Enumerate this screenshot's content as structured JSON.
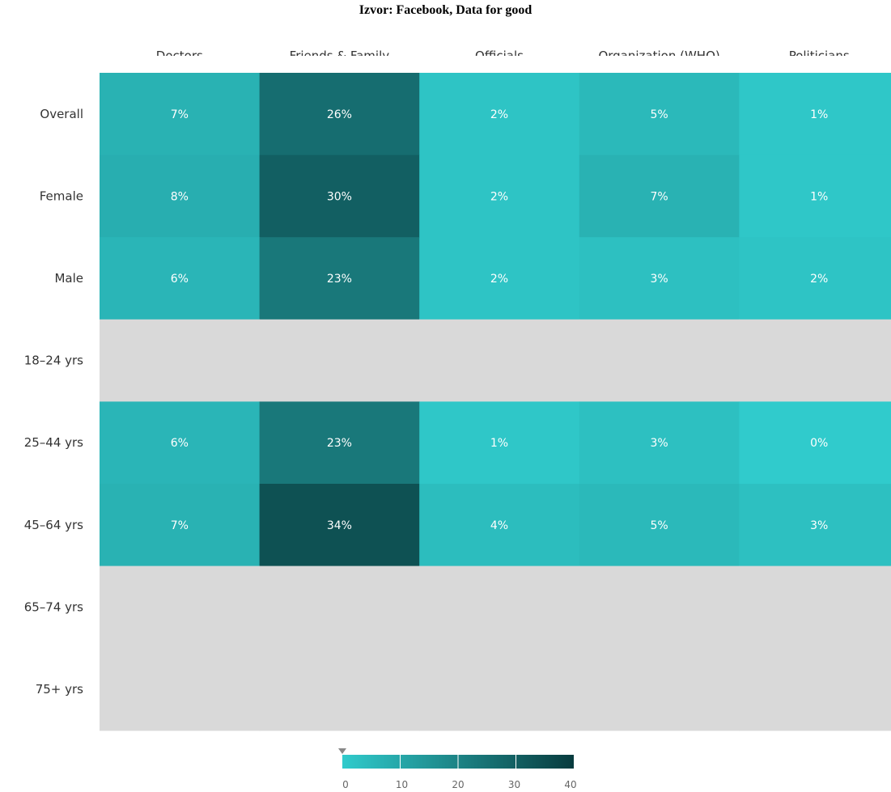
{
  "source_title": "Izvor: Facebook, Data for good",
  "colors": {
    "scale_min": "#30cbcc",
    "scale_max": "#083b3e",
    "missing": "#d9d9d9",
    "cell_text": "#ffffff"
  },
  "chart_data": {
    "type": "heatmap",
    "title": "Izvor: Facebook, Data for good",
    "columns": [
      "Doctors",
      "Friends & Family",
      "Officials",
      "Organization (WHO)",
      "Politicians"
    ],
    "rows": [
      "Overall",
      "Female",
      "Male",
      "18–24 yrs",
      "25–44 yrs",
      "45–64 yrs",
      "65–74 yrs",
      "75+ yrs"
    ],
    "values": [
      [
        7,
        26,
        2,
        5,
        1
      ],
      [
        8,
        30,
        2,
        7,
        1
      ],
      [
        6,
        23,
        2,
        3,
        2
      ],
      [
        null,
        null,
        null,
        null,
        null
      ],
      [
        6,
        23,
        1,
        3,
        0
      ],
      [
        7,
        34,
        4,
        5,
        3
      ],
      [
        null,
        null,
        null,
        null,
        null
      ],
      [
        null,
        null,
        null,
        null,
        null
      ]
    ],
    "value_suffix": "%",
    "color_scale": {
      "min": 0,
      "max": 40,
      "ticks": [
        "0",
        "10",
        "20",
        "30",
        "40"
      ]
    }
  }
}
